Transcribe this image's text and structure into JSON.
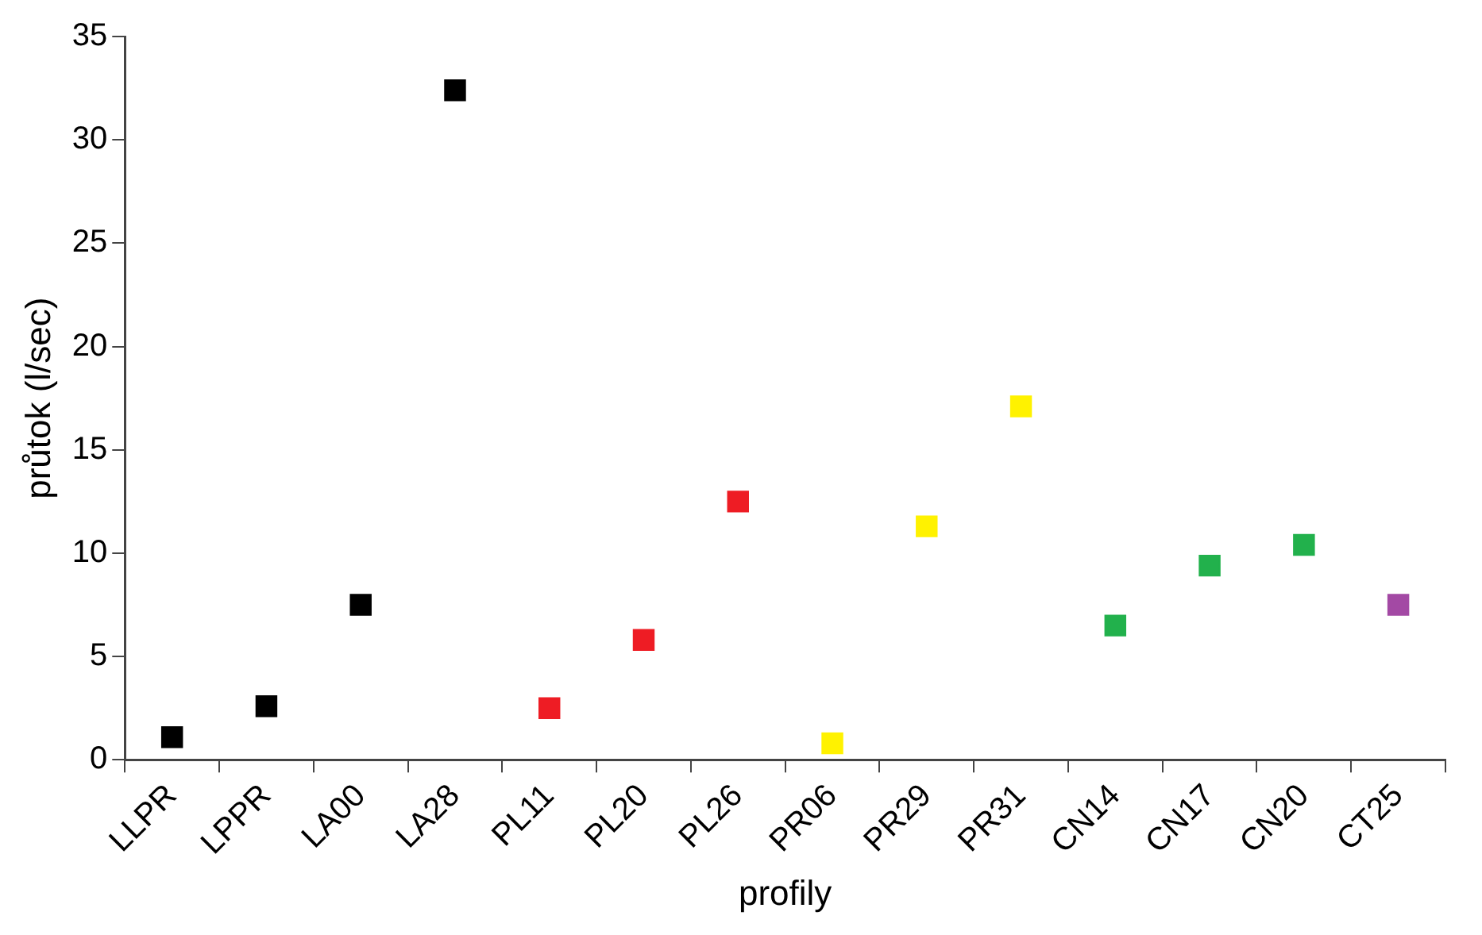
{
  "chart_data": {
    "type": "scatter",
    "xlabel": "profily",
    "ylabel": "průtok (l/sec)",
    "categories": [
      "LLPR",
      "LPPR",
      "LA00",
      "LA28",
      "PL11",
      "PL20",
      "PL26",
      "PR06",
      "PR29",
      "PR31",
      "CN14",
      "CN17",
      "CN20",
      "CT25"
    ],
    "values": [
      1.1,
      2.6,
      7.5,
      32.4,
      2.5,
      5.8,
      12.5,
      0.8,
      11.3,
      17.1,
      6.5,
      9.4,
      10.4,
      7.5
    ],
    "colors": [
      "#000000",
      "#000000",
      "#000000",
      "#000000",
      "#ee1c24",
      "#ee1c24",
      "#ee1c24",
      "#fff200",
      "#fff200",
      "#fff200",
      "#22b14c",
      "#22b14c",
      "#22b14c",
      "#a349a4"
    ],
    "ylim": [
      0,
      35
    ],
    "yticks": [
      0,
      5,
      10,
      15,
      20,
      25,
      30,
      35
    ],
    "grid": false,
    "legend": false,
    "marker": "square"
  }
}
